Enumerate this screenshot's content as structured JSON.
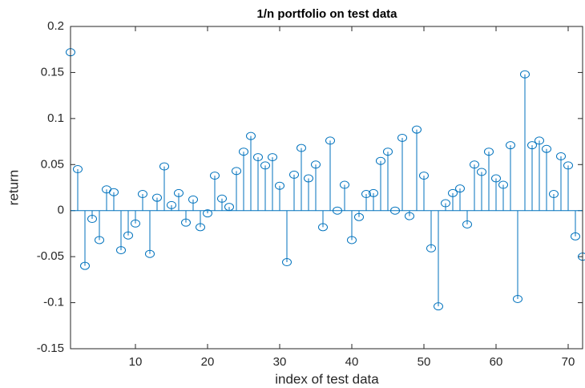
{
  "chart_data": {
    "type": "stem",
    "title": "1/n portfolio on test data",
    "x_label": "index of test data",
    "y_label": "return",
    "x": [
      1,
      2,
      3,
      4,
      5,
      6,
      7,
      8,
      9,
      10,
      11,
      12,
      13,
      14,
      15,
      16,
      17,
      18,
      19,
      20,
      21,
      22,
      23,
      24,
      25,
      26,
      27,
      28,
      29,
      30,
      31,
      32,
      33,
      34,
      35,
      36,
      37,
      38,
      39,
      40,
      41,
      42,
      43,
      44,
      45,
      46,
      47,
      48,
      49,
      50,
      51,
      52,
      53,
      54,
      55,
      56,
      57,
      58,
      59,
      60,
      61,
      62,
      63,
      64,
      65,
      66,
      67,
      68,
      69,
      70,
      71,
      72
    ],
    "values": [
      0.172,
      0.045,
      -0.06,
      -0.009,
      -0.032,
      0.023,
      0.02,
      -0.043,
      -0.027,
      -0.014,
      0.018,
      -0.047,
      0.014,
      0.048,
      0.006,
      0.019,
      -0.013,
      0.012,
      -0.018,
      -0.003,
      0.038,
      0.013,
      0.004,
      0.043,
      0.064,
      0.081,
      0.058,
      0.049,
      0.058,
      0.027,
      -0.056,
      0.039,
      0.068,
      0.035,
      0.05,
      -0.018,
      0.076,
      0.0,
      0.028,
      -0.032,
      -0.007,
      0.018,
      0.019,
      0.054,
      0.064,
      0.0,
      0.079,
      -0.006,
      0.088,
      0.038,
      -0.041,
      -0.104,
      0.008,
      0.019,
      0.024,
      -0.015,
      0.05,
      0.042,
      0.064,
      0.035,
      0.028,
      0.071,
      -0.096,
      0.148,
      0.071,
      0.076,
      0.067,
      0.018,
      0.059,
      0.049,
      -0.028,
      -0.05
    ],
    "color": "#0072bd",
    "xlim": [
      1,
      72
    ],
    "xticks": [
      10,
      20,
      30,
      40,
      50,
      60,
      70
    ],
    "ylim": [
      -0.15,
      0.2
    ],
    "yticks": [
      -0.15,
      -0.1,
      -0.05,
      0,
      0.05,
      0.1,
      0.15,
      0.2
    ]
  }
}
